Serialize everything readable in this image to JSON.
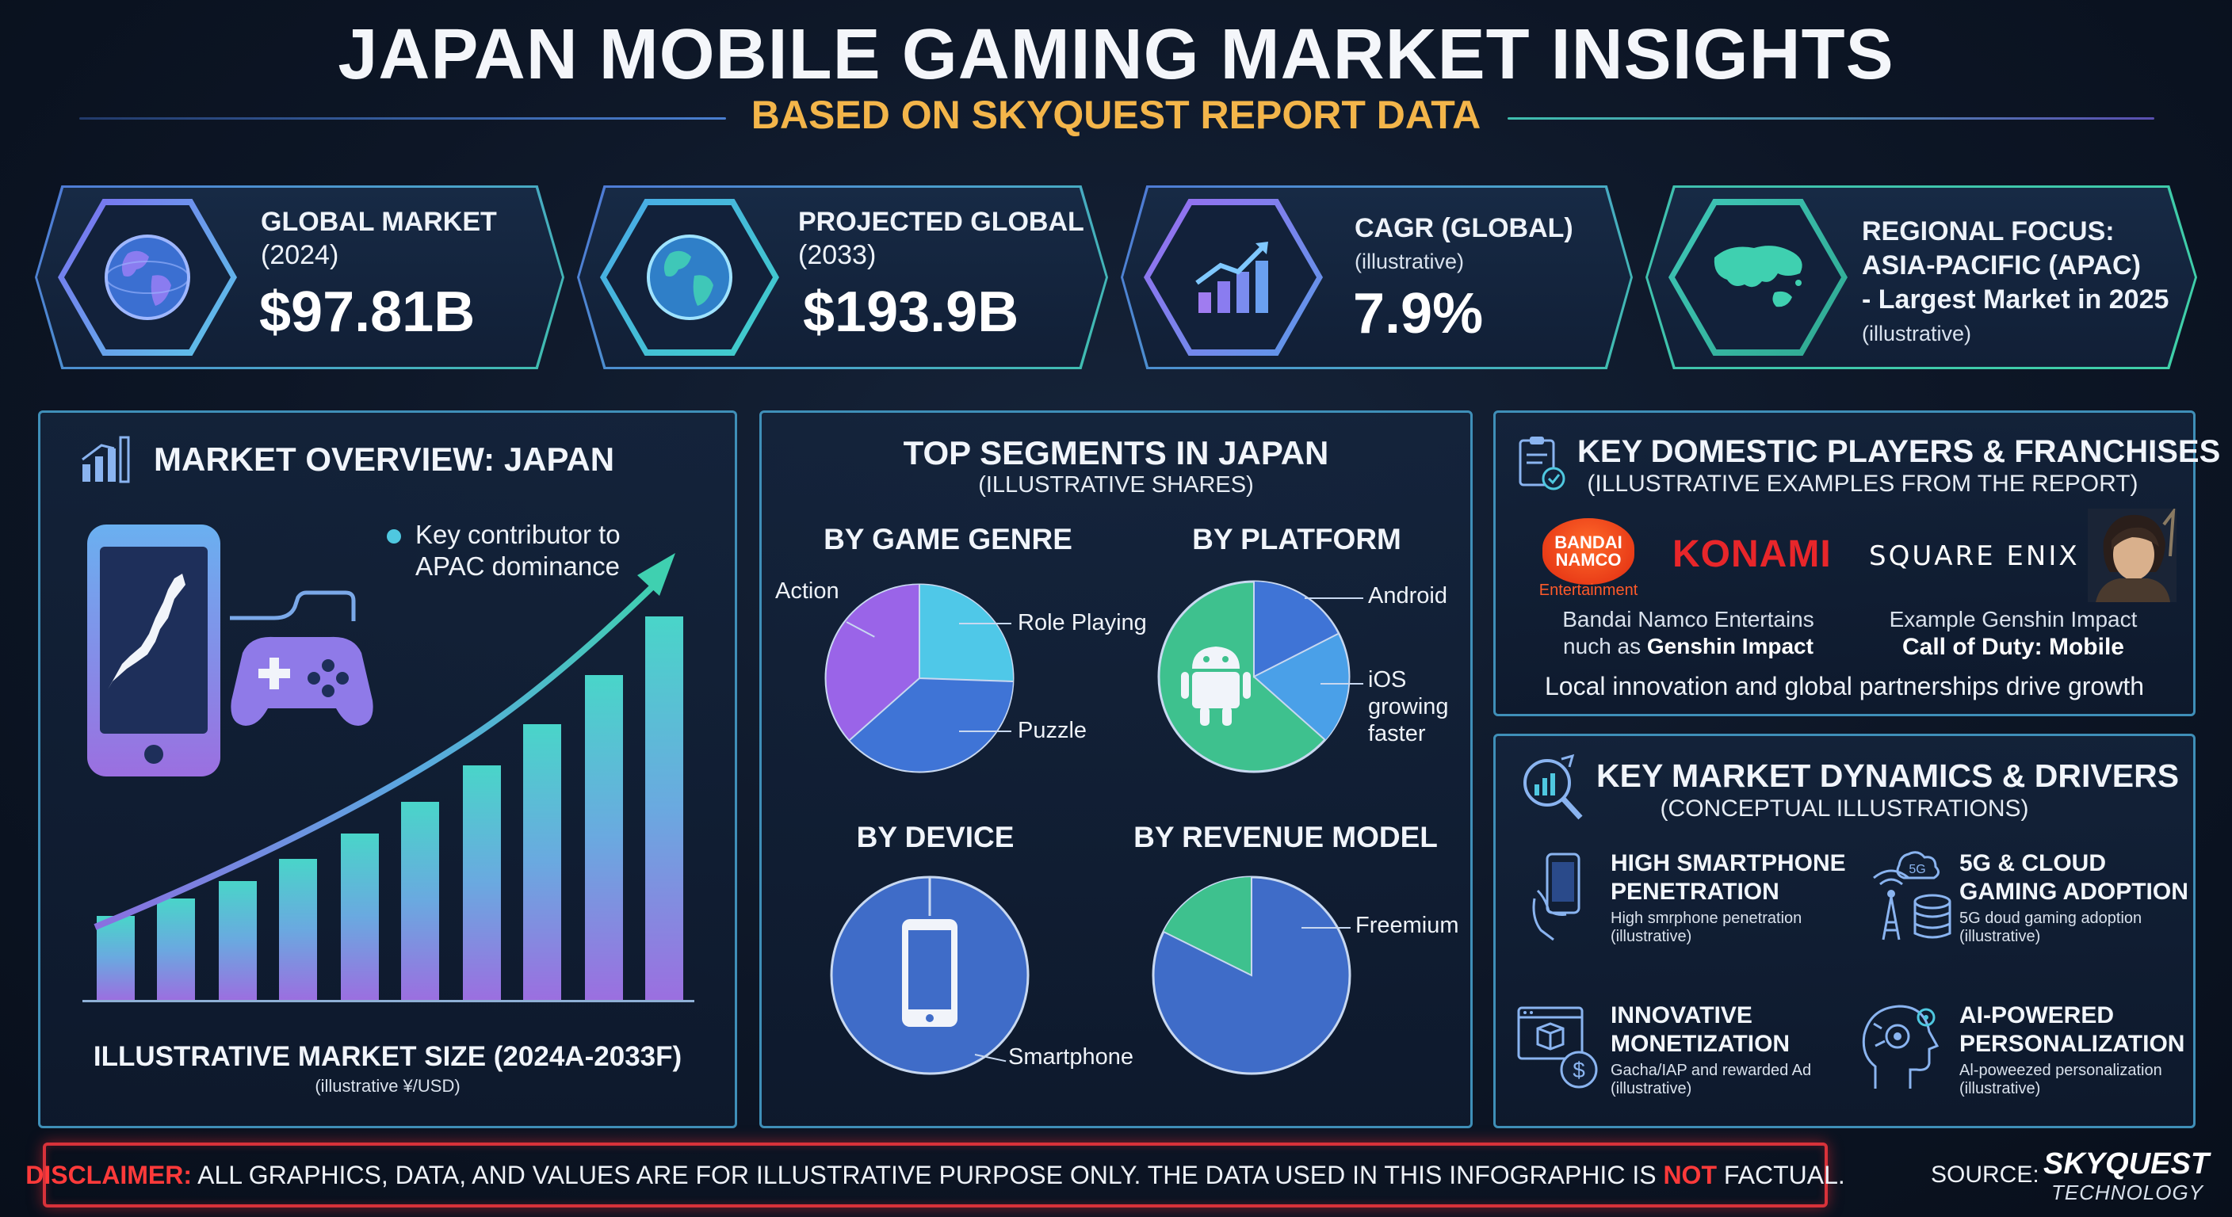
{
  "header": {
    "title": "JAPAN MOBILE GAMING MARKET INSIGHTS",
    "subtitle": "BASED ON SKYQUEST REPORT DATA"
  },
  "stats": [
    {
      "label": "GLOBAL MARKET",
      "sub": "(2024)",
      "value": "$97.81B",
      "icon": "globe-icon"
    },
    {
      "label": "PROJECTED GLOBAL",
      "sub": "(2033)",
      "value": "$193.9B",
      "icon": "globe-icon"
    },
    {
      "label": "CAGR (GLOBAL)",
      "sub": "(illustrative)",
      "value": "7.9%",
      "icon": "growth-chart-icon"
    },
    {
      "label_lines": [
        "REGIONAL FOCUS:",
        "ASIA-PACIFIC (APAC)",
        "- Largest Market in 2025"
      ],
      "sub": "(illustrative)",
      "icon": "world-map-icon"
    }
  ],
  "overview": {
    "title": "MARKET OVERVIEW: JAPAN",
    "bullet_lines": [
      "Key contributor to",
      "APAC dominance"
    ],
    "chart_caption": "ILLUSTRATIVE MARKET SIZE (2024A-2033F)",
    "chart_subcaption": "(illustrative ¥/USD)"
  },
  "segments": {
    "title": "TOP SEGMENTS IN JAPAN",
    "subtitle": "(ILLUSTRATIVE SHARES)",
    "genre": {
      "title": "BY GAME GENRE",
      "labels": [
        "Action",
        "Role Playing",
        "Puzzle"
      ]
    },
    "platform": {
      "title": "BY PLATFORM",
      "labels": [
        "Android"
      ],
      "ios_lines": [
        "iOS",
        "growing",
        "faster"
      ]
    },
    "device": {
      "title": "BY DEVICE",
      "labels": [
        "Smartphone"
      ]
    },
    "revenue": {
      "title": "BY REVENUE MODEL",
      "labels": [
        "Freemium"
      ]
    }
  },
  "players": {
    "title": "KEY DOMESTIC PLAYERS & FRANCHISES",
    "subtitle": "(ILLUSTRATIVE EXAMPLES FROM THE REPORT)",
    "logos": {
      "bandai_line1": "BANDAI",
      "bandai_line2": "NAMCO",
      "bandai_ent": "Entertainment",
      "konami": "KONAMI",
      "square_enix": "SQUARE ENIX"
    },
    "left_line1": "Bandai Namco Entertains",
    "left_line2_pre": "nuch as ",
    "left_line2_bold": "Genshin Impact",
    "right_line1": "Example Genshin Impact",
    "right_line2": "Call of Duty: Mobile",
    "footer": "Local innovation and global partnerships drive growth"
  },
  "dynamics": {
    "title": "KEY MARKET DYNAMICS & DRIVERS",
    "subtitle": "(CONCEPTUAL ILLUSTRATIONS)",
    "drivers": [
      {
        "h1": "HIGH SMARTPHONE",
        "h2": "PENETRATION",
        "s1": "High smrphone penetration",
        "s2": "(illustrative)",
        "icon": "smartphone-hand-icon"
      },
      {
        "h1": "5G & CLOUD",
        "h2": "GAMING ADOPTION",
        "s1": "5G doud gaming adoption",
        "s2": "(illustrative)",
        "icon": "5g-tower-icon",
        "badge": "5G"
      },
      {
        "h1": "INNOVATIVE",
        "h2": "MONETIZATION",
        "s1": "Gacha/IAP and rewarded Ad",
        "s2": "(illustrative)",
        "icon": "monetization-icon"
      },
      {
        "h1": "AI-POWERED",
        "h2": "PERSONALIZATION",
        "s1": "Al-poweezed personalization",
        "s2": "(illustrative)",
        "icon": "ai-brain-icon"
      }
    ]
  },
  "footer": {
    "disclaimer_label": "DISCLAIMER:",
    "disclaimer_text_1": " ALL GRAPHICS, DATA, AND VALUES ARE FOR ILLUSTRATIVE PURPOSE ONLY. THE DATA USED IN THIS INFOGRAPHIC IS ",
    "disclaimer_not": "NOT",
    "disclaimer_text_2": " FACTUAL.",
    "source_label": "SOURCE:",
    "source_brand": "SKYQUEST",
    "source_sub": "TECHNOLOGY"
  },
  "colors": {
    "accent_gold": "#f3b54a",
    "teal": "#3fbfae",
    "blue": "#4f79d6",
    "purple": "#9b6fe0",
    "red": "#d8323a"
  }
}
